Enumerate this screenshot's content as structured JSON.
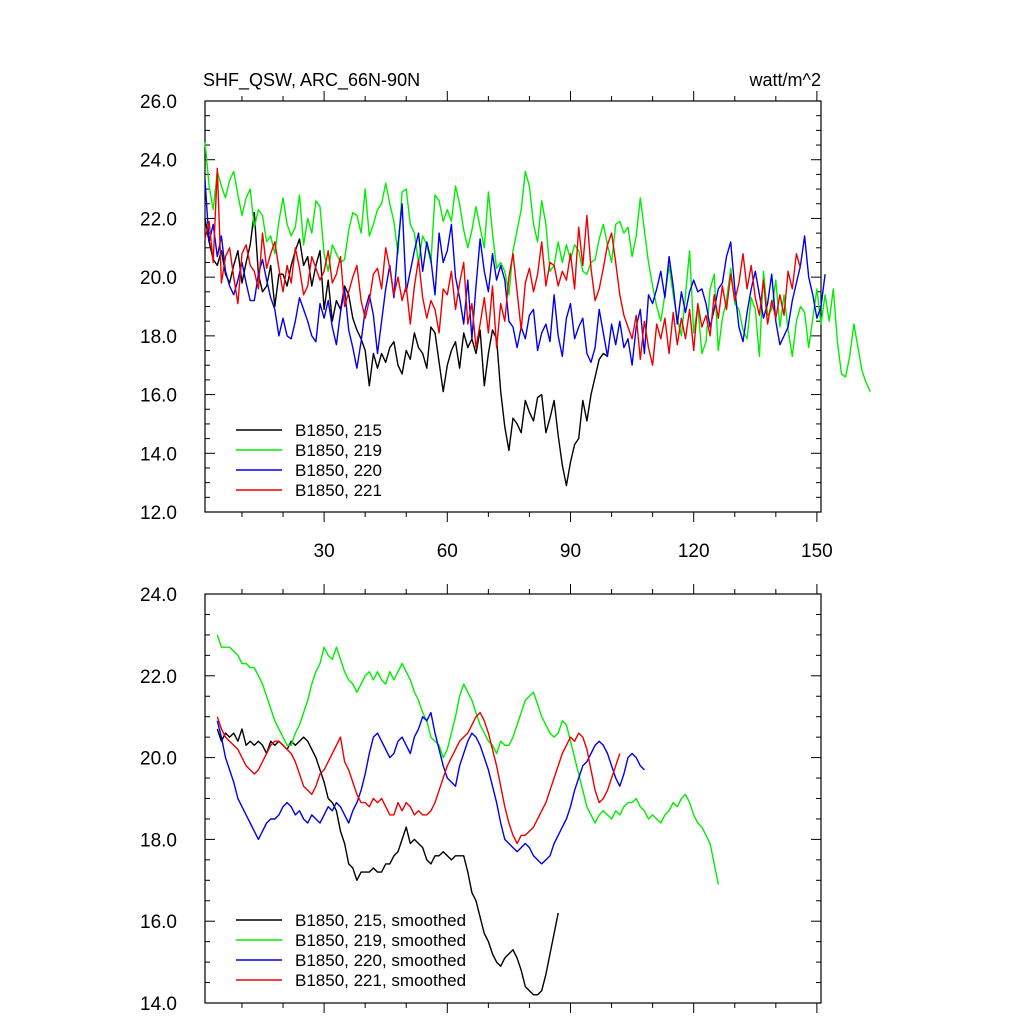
{
  "title_left": "SHF_QSW, ARC_66N-90N",
  "title_right": "watt/m^2",
  "chart_data": [
    {
      "type": "line",
      "title": "SHF_QSW, ARC_66N-90N",
      "units": "watt/m^2",
      "xlim": [
        1,
        151
      ],
      "ylim": [
        12,
        26
      ],
      "xticks": [
        30,
        60,
        90,
        120,
        150
      ],
      "yticks": [
        "12.0",
        "14.0",
        "16.0",
        "18.0",
        "20.0",
        "22.0",
        "24.0",
        "26.0"
      ],
      "legend_position": "bottom-left",
      "series": [
        {
          "name": "B1850, 215",
          "color": "#000000",
          "x_start": 1,
          "values": [
            22.0,
            21.2,
            20.6,
            20.4,
            20.9,
            20.1,
            19.8,
            20.4,
            20.9,
            19.8,
            20.5,
            21.1,
            22.2,
            20.1,
            19.5,
            19.7,
            20.4,
            19.0,
            20.1,
            20.1,
            19.7,
            20.4,
            20.9,
            21.3,
            20.4,
            20.7,
            19.7,
            20.4,
            20.9,
            18.9,
            19.9,
            18.5,
            19.2,
            18.9,
            19.7,
            19.4,
            18.6,
            18.2,
            17.9,
            17.5,
            16.3,
            17.4,
            16.9,
            17.4,
            17.1,
            17.6,
            17.8,
            17.0,
            16.7,
            17.5,
            17.2,
            18.1,
            17.6,
            17.4,
            16.9,
            18.3,
            18.1,
            17.1,
            16.1,
            17.0,
            17.5,
            17.8,
            16.9,
            18.1,
            17.6,
            17.9,
            17.4,
            18.2,
            16.3,
            17.4,
            18.2,
            17.9,
            16.1,
            14.9,
            14.1,
            15.2,
            15.0,
            14.7,
            15.8,
            15.4,
            15.1,
            15.9,
            16.0,
            14.7,
            15.2,
            15.8,
            14.6,
            13.6,
            12.9,
            13.7,
            14.3,
            14.5,
            15.8,
            15.1,
            16.0,
            16.6,
            17.2,
            17.4,
            17.3
          ]
        },
        {
          "name": "B1850, 219",
          "color": "#00ee00",
          "x_start": 1,
          "values": [
            24.6,
            23.1,
            22.3,
            23.6,
            23.1,
            22.7,
            23.3,
            23.6,
            22.8,
            22.1,
            22.7,
            23.0,
            21.7,
            22.3,
            22.1,
            21.2,
            21.4,
            20.8,
            21.9,
            22.7,
            21.8,
            21.4,
            21.7,
            22.8,
            21.1,
            22.0,
            21.5,
            22.6,
            22.4,
            20.8,
            20.2,
            21.1,
            20.8,
            20.5,
            20.6,
            21.6,
            22.2,
            22.1,
            21.5,
            23.0,
            21.4,
            21.8,
            22.3,
            22.5,
            23.2,
            22.5,
            21.9,
            20.8,
            22.9,
            23.0,
            21.8,
            21.5,
            20.5,
            21.4,
            21.1,
            20.5,
            22.8,
            22.6,
            21.9,
            22.3,
            21.9,
            23.1,
            22.5,
            21.6,
            21.0,
            21.6,
            22.4,
            21.7,
            21.0,
            22.9,
            21.5,
            20.3,
            20.5,
            20.2,
            19.4,
            20.9,
            21.6,
            22.3,
            23.6,
            23.1,
            21.8,
            21.2,
            22.6,
            21.8,
            20.2,
            20.4,
            21.2,
            20.5,
            21.1,
            20.6,
            21.1,
            20.9,
            20.2,
            20.1,
            20.5,
            20.6,
            21.3,
            21.8,
            21.1,
            20.5,
            21.8,
            21.9,
            21.5,
            21.7,
            20.7,
            21.4,
            22.7,
            21.6,
            20.5,
            19.7,
            19.0,
            18.5,
            19.4,
            20.4,
            19.4,
            18.6,
            18.0,
            19.4,
            20.9,
            18.1,
            19.0,
            17.4,
            17.8,
            19.6,
            20.1,
            17.5,
            18.6,
            19.2,
            20.3,
            19.1,
            18.9,
            18.2,
            17.9,
            19.3,
            18.9,
            17.3,
            20.2,
            18.7,
            18.9,
            19.9,
            18.3,
            19.4,
            18.2,
            17.3,
            18.5,
            19.0,
            18.8,
            17.6,
            18.6,
            19.6,
            18.4,
            19.4,
            18.5,
            19.6,
            17.8,
            16.7,
            16.6,
            17.3,
            18.4,
            17.6,
            16.8,
            16.4,
            16.1
          ]
        },
        {
          "name": "B1850, 220",
          "color": "#0000ee",
          "x_start": 1,
          "values": [
            23.3,
            21.2,
            21.8,
            20.7,
            21.4,
            20.2,
            19.7,
            19.4,
            19.9,
            20.5,
            19.8,
            19.2,
            19.2,
            20.1,
            20.6,
            19.9,
            19.3,
            18.9,
            18.0,
            18.6,
            18.0,
            17.9,
            18.5,
            19.3,
            18.9,
            18.5,
            18.0,
            17.8,
            19.1,
            18.6,
            19.2,
            18.3,
            17.7,
            18.8,
            19.6,
            18.2,
            17.6,
            16.9,
            17.8,
            18.9,
            19.4,
            18.7,
            17.4,
            18.5,
            19.6,
            20.4,
            19.3,
            21.1,
            22.5,
            19.5,
            20.2,
            20.9,
            21.5,
            20.2,
            21.2,
            20.6,
            19.4,
            21.5,
            20.5,
            20.9,
            21.8,
            20.0,
            19.3,
            18.4,
            19.9,
            17.9,
            19.7,
            21.3,
            20.2,
            19.5,
            20.8,
            19.9,
            20.4,
            19.9,
            18.5,
            18.3,
            17.6,
            18.3,
            17.9,
            18.7,
            18.9,
            17.5,
            18.1,
            18.4,
            17.8,
            19.4,
            18.0,
            17.3,
            18.6,
            19.1,
            17.9,
            18.3,
            18.6,
            17.4,
            17.1,
            17.6,
            18.9,
            18.1,
            17.3,
            18.4,
            17.7,
            18.5,
            17.6,
            17.9,
            17.0,
            18.3,
            18.9,
            17.4,
            19.4,
            19.1,
            19.6,
            20.2,
            19.3,
            20.7,
            19.7,
            18.4,
            19.5,
            18.8,
            19.5,
            19.9,
            19.5,
            19.6,
            19.1,
            18.3,
            18.9,
            19.6,
            19.8,
            20.7,
            21.2,
            19.6,
            18.3,
            17.8,
            18.8,
            19.6,
            20.2,
            19.4,
            18.6,
            19.1,
            20.1,
            18.5,
            17.7,
            18.0,
            18.3,
            19.2,
            19.8,
            20.4,
            21.4,
            20.0,
            19.4,
            18.6,
            19.0,
            20.1
          ]
        },
        {
          "name": "B1850, 221",
          "color": "#ee0000",
          "x_start": 1,
          "values": [
            21.3,
            21.9,
            20.5,
            23.7,
            19.8,
            20.7,
            21.0,
            20.0,
            19.1,
            20.8,
            21.1,
            20.4,
            20.2,
            19.6,
            21.5,
            20.3,
            20.8,
            21.2,
            20.3,
            19.5,
            20.4,
            19.8,
            21.0,
            20.3,
            19.4,
            19.7,
            20.7,
            20.3,
            19.9,
            20.2,
            20.9,
            19.8,
            20.1,
            20.7,
            19.0,
            19.5,
            20.0,
            20.4,
            19.2,
            18.6,
            19.2,
            20.1,
            20.3,
            19.6,
            21.0,
            20.3,
            19.4,
            20.0,
            19.2,
            19.7,
            18.4,
            19.7,
            20.6,
            19.3,
            18.6,
            19.2,
            18.9,
            18.1,
            19.6,
            19.4,
            20.2,
            18.9,
            19.8,
            20.5,
            18.4,
            19.1,
            17.6,
            18.4,
            19.3,
            18.1,
            19.7,
            17.6,
            19.1,
            18.5,
            20.0,
            20.8,
            19.5,
            18.2,
            19.8,
            20.3,
            19.5,
            20.1,
            21.2,
            19.7,
            20.5,
            20.4,
            19.7,
            20.2,
            19.9,
            20.8,
            19.6,
            21.7,
            20.4,
            22.1,
            20.3,
            19.2,
            19.6,
            20.3,
            21.1,
            21.5,
            20.5,
            19.4,
            18.7,
            18.3,
            17.9,
            18.7,
            17.2,
            18.5,
            17.6,
            17.0,
            18.4,
            17.9,
            18.6,
            17.4,
            18.8,
            17.7,
            18.6,
            17.9,
            18.9,
            17.5,
            19.1,
            18.3,
            18.7,
            18.0,
            19.4,
            18.6,
            19.7,
            18.9,
            20.1,
            19.2,
            19.8,
            20.8,
            19.6,
            20.4,
            19.3,
            18.7,
            19.9,
            18.4,
            19.2,
            18.6,
            19.4,
            18.7,
            20.2,
            19.6,
            20.8,
            20.3
          ]
        }
      ]
    },
    {
      "type": "line",
      "xlim": [
        1,
        151
      ],
      "ylim": [
        14,
        24
      ],
      "yticks": [
        "14.0",
        "16.0",
        "18.0",
        "20.0",
        "22.0",
        "24.0"
      ],
      "legend_position": "bottom-left",
      "series": [
        {
          "name": "B1850, 215, smoothed",
          "color": "#000000",
          "x_start": 4,
          "values": [
            20.7,
            20.4,
            20.6,
            20.5,
            20.6,
            20.4,
            20.7,
            20.3,
            20.4,
            20.3,
            20.4,
            20.3,
            20.1,
            20.4,
            20.3,
            20.4,
            20.3,
            20.2,
            20.4,
            20.3,
            20.4,
            20.5,
            20.4,
            20.2,
            20.0,
            19.7,
            19.4,
            19.0,
            18.9,
            18.7,
            18.2,
            17.9,
            17.4,
            17.3,
            17.0,
            17.2,
            17.2,
            17.2,
            17.3,
            17.2,
            17.2,
            17.4,
            17.4,
            17.6,
            17.7,
            18.0,
            18.3,
            17.9,
            18.0,
            17.9,
            17.8,
            17.5,
            17.4,
            17.6,
            17.6,
            17.7,
            17.6,
            17.5,
            17.6,
            17.6,
            17.6,
            17.2,
            16.7,
            16.5,
            16.1,
            15.7,
            15.5,
            15.2,
            15.0,
            14.9,
            15.1,
            15.2,
            15.3,
            15.1,
            14.8,
            14.4,
            14.3,
            14.2,
            14.2,
            14.3,
            14.7,
            15.2,
            15.7,
            16.2
          ]
        },
        {
          "name": "B1850, 219, smoothed",
          "color": "#00ee00",
          "x_start": 4,
          "values": [
            23.0,
            22.7,
            22.7,
            22.7,
            22.6,
            22.5,
            22.3,
            22.3,
            22.2,
            22.2,
            22.0,
            21.8,
            21.5,
            21.2,
            20.9,
            20.7,
            20.5,
            20.3,
            20.3,
            20.6,
            20.8,
            21.1,
            21.4,
            21.8,
            22.1,
            22.3,
            22.7,
            22.5,
            22.4,
            22.7,
            22.4,
            22.1,
            21.9,
            21.8,
            21.6,
            21.8,
            22.0,
            22.1,
            21.9,
            22.1,
            21.9,
            21.8,
            22.1,
            21.9,
            22.1,
            22.3,
            22.1,
            21.9,
            21.6,
            21.4,
            21.1,
            20.9,
            20.5,
            20.4,
            20.3,
            20.0,
            20.2,
            20.6,
            21.0,
            21.5,
            21.8,
            21.6,
            21.4,
            21.1,
            20.8,
            20.6,
            20.4,
            20.3,
            20.1,
            20.4,
            20.3,
            20.3,
            20.5,
            20.8,
            21.1,
            21.4,
            21.5,
            21.6,
            21.3,
            21.0,
            20.8,
            20.6,
            20.5,
            20.6,
            20.9,
            20.8,
            20.4,
            20.0,
            19.6,
            19.2,
            18.8,
            18.6,
            18.4,
            18.6,
            18.7,
            18.6,
            18.5,
            18.7,
            18.6,
            18.8,
            18.9,
            18.9,
            19.0,
            18.8,
            18.7,
            18.5,
            18.6,
            18.5,
            18.4,
            18.6,
            18.7,
            18.9,
            18.8,
            19.0,
            19.1,
            18.9,
            18.6,
            18.4,
            18.3,
            18.1,
            17.9,
            17.4,
            16.9
          ]
        },
        {
          "name": "B1850, 220, smoothed",
          "color": "#0000ee",
          "x_start": 4,
          "values": [
            20.9,
            20.5,
            20.0,
            19.7,
            19.4,
            19.0,
            18.8,
            18.6,
            18.4,
            18.2,
            18.0,
            18.2,
            18.4,
            18.5,
            18.5,
            18.6,
            18.8,
            18.9,
            18.8,
            18.6,
            18.7,
            18.5,
            18.4,
            18.6,
            18.5,
            18.4,
            18.6,
            18.8,
            18.7,
            18.9,
            18.8,
            18.6,
            18.4,
            18.7,
            18.9,
            19.2,
            19.6,
            20.1,
            20.5,
            20.6,
            20.4,
            20.2,
            20.0,
            20.1,
            20.4,
            20.5,
            20.3,
            20.1,
            20.5,
            20.7,
            21.0,
            20.9,
            21.1,
            20.6,
            20.2,
            19.8,
            19.5,
            19.4,
            19.3,
            19.8,
            20.1,
            20.4,
            20.6,
            20.5,
            20.3,
            20.0,
            19.7,
            19.3,
            18.9,
            18.4,
            18.0,
            17.9,
            17.8,
            17.7,
            17.8,
            17.9,
            17.8,
            17.6,
            17.5,
            17.4,
            17.5,
            17.6,
            17.9,
            18.1,
            18.3,
            18.5,
            18.8,
            19.2,
            19.5,
            19.8,
            19.9,
            20.1,
            20.3,
            20.4,
            20.3,
            20.1,
            19.8,
            19.5,
            19.3,
            19.6,
            20.0,
            20.1,
            20.0,
            19.8,
            19.7
          ]
        },
        {
          "name": "B1850, 221, smoothed",
          "color": "#ee0000",
          "x_start": 4,
          "values": [
            21.0,
            20.7,
            20.5,
            20.4,
            20.3,
            20.2,
            20.0,
            19.8,
            19.7,
            19.6,
            19.7,
            19.9,
            20.1,
            20.3,
            20.4,
            20.4,
            20.3,
            20.2,
            20.1,
            19.9,
            19.6,
            19.3,
            19.2,
            19.1,
            19.3,
            19.6,
            19.7,
            19.9,
            20.1,
            20.3,
            20.5,
            19.9,
            19.7,
            19.4,
            19.1,
            18.9,
            18.9,
            18.8,
            19.0,
            18.9,
            19.0,
            18.8,
            18.6,
            18.6,
            18.9,
            18.7,
            18.9,
            18.8,
            18.6,
            18.7,
            18.6,
            18.6,
            18.7,
            18.9,
            19.2,
            19.5,
            19.8,
            20.0,
            20.2,
            20.4,
            20.5,
            20.6,
            20.8,
            21.0,
            21.1,
            20.9,
            20.6,
            20.2,
            19.8,
            19.3,
            18.8,
            18.4,
            18.1,
            17.9,
            18.1,
            18.1,
            18.2,
            18.3,
            18.5,
            18.7,
            18.9,
            19.2,
            19.5,
            19.8,
            20.1,
            20.3,
            20.5,
            20.4,
            20.6,
            20.5,
            20.2,
            19.7,
            19.2,
            18.9,
            19.0,
            19.2,
            19.5,
            19.8,
            20.1
          ]
        }
      ]
    }
  ]
}
